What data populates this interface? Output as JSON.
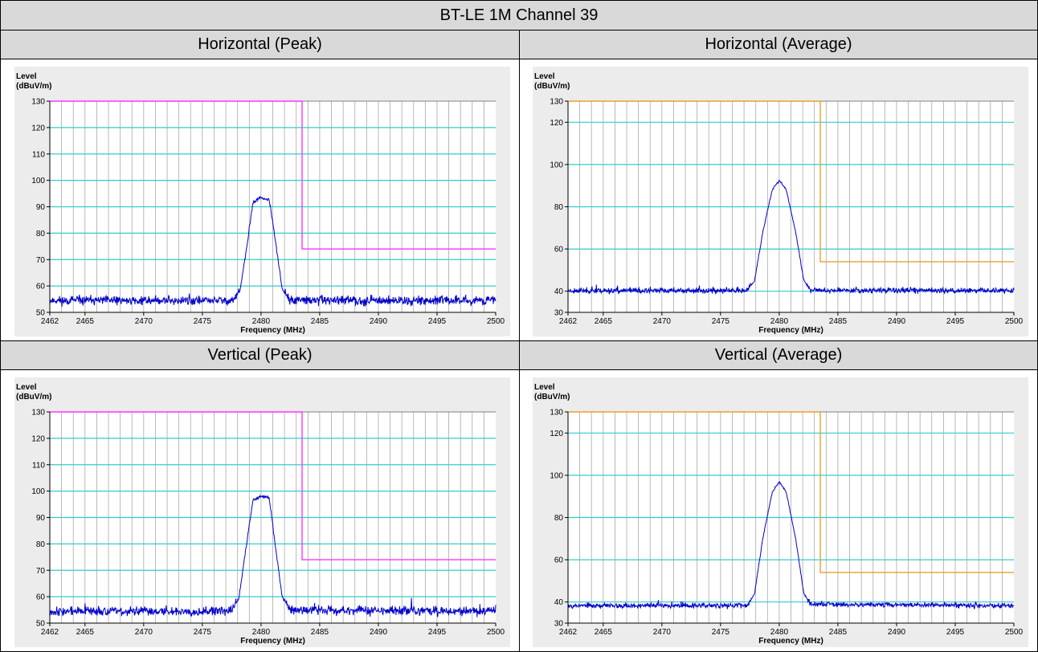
{
  "report": {
    "title": "BT-LE 1M Channel 39",
    "panels": [
      {
        "heading": "Horizontal (Peak)"
      },
      {
        "heading": "Horizontal (Average)"
      },
      {
        "heading": "Vertical (Peak)"
      },
      {
        "heading": "Vertical (Average)"
      }
    ]
  },
  "colors": {
    "trace": "#0000cc",
    "limit_peak": "#ff33ff",
    "limit_average": "#e8a030",
    "gridline_major": "#33cccc",
    "gridline_minor": "#a8a8a8",
    "plot_bg": "#ffffff",
    "panel_bg": "#ececec"
  },
  "chart_data": [
    {
      "type": "line",
      "title": "Horizontal (Peak)",
      "ylabel_line1": "Level",
      "ylabel_line2": "(dBuV/m)",
      "xlabel": "Frequency (MHz)",
      "xlim": [
        2462,
        2500
      ],
      "ylim": [
        50,
        130
      ],
      "yticks": [
        50,
        60,
        70,
        80,
        90,
        100,
        110,
        120,
        130
      ],
      "xticks": [
        2462,
        2465,
        2470,
        2475,
        2480,
        2485,
        2490,
        2495,
        2500
      ],
      "grid": true,
      "series": [
        {
          "role": "limit",
          "color": "limit_peak",
          "x": [
            2462,
            2483.5,
            2483.5,
            2500
          ],
          "y": [
            130,
            130,
            74,
            74
          ]
        },
        {
          "role": "trace",
          "color": "trace",
          "noise_floor": 54.5,
          "noise_amp": 1.3,
          "seed": 11,
          "x": [
            2462,
            2477.6,
            2478.2,
            2478.8,
            2479.3,
            2480.0,
            2480.7,
            2481.2,
            2481.8,
            2482.4,
            2500
          ],
          "y": [
            54.5,
            54.5,
            58,
            75,
            91.5,
            93.5,
            92.5,
            78,
            59,
            54.5,
            54.5
          ]
        }
      ]
    },
    {
      "type": "line",
      "title": "Horizontal (Average)",
      "ylabel_line1": "Level",
      "ylabel_line2": "(dBuV/m)",
      "xlabel": "Frequency (MHz)",
      "xlim": [
        2462,
        2500
      ],
      "ylim": [
        30,
        130
      ],
      "yticks": [
        30,
        40,
        60,
        80,
        100,
        120,
        130
      ],
      "xticks": [
        2462,
        2465,
        2470,
        2475,
        2480,
        2485,
        2490,
        2495,
        2500
      ],
      "grid": true,
      "series": [
        {
          "role": "limit",
          "color": "limit_average",
          "x": [
            2462,
            2483.5,
            2483.5,
            2500
          ],
          "y": [
            130,
            130,
            54,
            54
          ]
        },
        {
          "role": "trace",
          "color": "trace",
          "noise_floor": 40.3,
          "noise_amp": 1.0,
          "seed": 23,
          "x": [
            2462,
            2477.3,
            2477.9,
            2478.6,
            2479.4,
            2480.0,
            2480.6,
            2481.4,
            2482.1,
            2482.7,
            2500
          ],
          "y": [
            40.3,
            40.3,
            45,
            68,
            88,
            92.5,
            88,
            68,
            45,
            40.5,
            40.3
          ]
        }
      ]
    },
    {
      "type": "line",
      "title": "Vertical (Peak)",
      "ylabel_line1": "Level",
      "ylabel_line2": "(dBuV/m)",
      "xlabel": "Frequency (MHz)",
      "xlim": [
        2462,
        2500
      ],
      "ylim": [
        50,
        130
      ],
      "yticks": [
        50,
        60,
        70,
        80,
        90,
        100,
        110,
        120,
        130
      ],
      "xticks": [
        2462,
        2465,
        2470,
        2475,
        2480,
        2485,
        2490,
        2495,
        2500
      ],
      "grid": true,
      "series": [
        {
          "role": "limit",
          "color": "limit_peak",
          "x": [
            2462,
            2483.5,
            2483.5,
            2500
          ],
          "y": [
            130,
            130,
            74,
            74
          ]
        },
        {
          "role": "trace",
          "color": "trace",
          "noise_floor": 54.5,
          "noise_amp": 1.3,
          "seed": 37,
          "x": [
            2462,
            2477.4,
            2478.1,
            2478.7,
            2479.3,
            2480.0,
            2480.7,
            2481.2,
            2481.8,
            2482.5,
            2500
          ],
          "y": [
            54.5,
            54.5,
            59,
            78,
            96.5,
            98,
            97.5,
            80,
            60,
            55,
            54.5
          ]
        }
      ]
    },
    {
      "type": "line",
      "title": "Vertical (Average)",
      "ylabel_line1": "Level",
      "ylabel_line2": "(dBuV/m)",
      "xlabel": "Frequency (MHz)",
      "xlim": [
        2462,
        2500
      ],
      "ylim": [
        30,
        130
      ],
      "yticks": [
        30,
        40,
        60,
        80,
        100,
        120,
        130
      ],
      "xticks": [
        2462,
        2465,
        2470,
        2475,
        2480,
        2485,
        2490,
        2495,
        2500
      ],
      "grid": true,
      "series": [
        {
          "role": "limit",
          "color": "limit_average",
          "x": [
            2462,
            2483.5,
            2483.5,
            2500
          ],
          "y": [
            130,
            130,
            54,
            54
          ]
        },
        {
          "role": "trace",
          "color": "trace",
          "noise_floor": 38.3,
          "noise_amp": 0.9,
          "seed": 53,
          "x": [
            2462,
            2477.3,
            2477.9,
            2478.6,
            2479.4,
            2480.0,
            2480.6,
            2481.4,
            2482.1,
            2482.7,
            2500
          ],
          "y": [
            38.3,
            38.3,
            44,
            70,
            92,
            97,
            92,
            70,
            44,
            39,
            38.3
          ]
        }
      ]
    }
  ]
}
